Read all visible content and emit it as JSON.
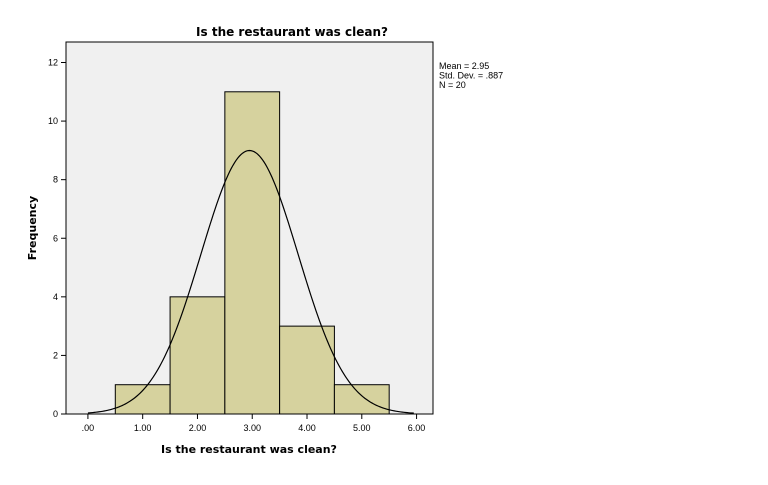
{
  "chart_data": {
    "type": "bar",
    "subtype": "histogram",
    "title": "Is the restaurant was clean?",
    "xlabel": "Is the restaurant was clean?",
    "ylabel": "Frequency",
    "xlim": [
      -0.4,
      6.3
    ],
    "ylim": [
      0,
      12.7
    ],
    "x_ticks": [
      ".00",
      "1.00",
      "2.00",
      "3.00",
      "4.00",
      "5.00",
      "6.00"
    ],
    "x_tick_values": [
      0,
      1,
      2,
      3,
      4,
      5,
      6
    ],
    "y_ticks": [
      "0",
      "2",
      "4",
      "6",
      "8",
      "10",
      "12"
    ],
    "y_tick_values": [
      0,
      2,
      4,
      6,
      8,
      10,
      12
    ],
    "bins": [
      {
        "x0": 0.5,
        "x1": 1.5,
        "count": 1
      },
      {
        "x0": 1.5,
        "x1": 2.5,
        "count": 4
      },
      {
        "x0": 2.5,
        "x1": 3.5,
        "count": 11
      },
      {
        "x0": 3.5,
        "x1": 4.5,
        "count": 3
      },
      {
        "x0": 4.5,
        "x1": 5.5,
        "count": 1
      }
    ],
    "normal_curve": {
      "mean": 2.95,
      "std": 0.887,
      "n": 20,
      "bin_width": 1
    },
    "stats": [
      "Mean = 2.95",
      "Std. Dev. = .887",
      "N = 20"
    ],
    "colors": {
      "bar_fill": "#d6d29e",
      "bar_stroke": "#000000",
      "plot_bg": "#f0f0f0",
      "curve": "#000000"
    },
    "grid": false,
    "legend": "none"
  }
}
